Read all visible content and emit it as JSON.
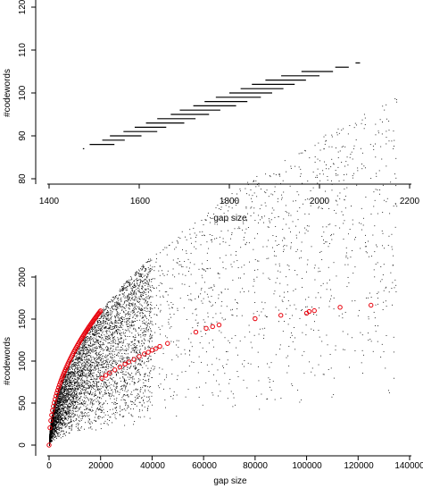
{
  "chart_data": [
    {
      "type": "scatter",
      "title": "",
      "xlabel": "gap size",
      "ylabel": "#codewords",
      "xlim": [
        1380,
        2220
      ],
      "ylim": [
        78,
        122
      ],
      "xticks": [
        "1400",
        "1600",
        "1800",
        "2000",
        "2200"
      ],
      "yticks": [
        "80",
        "90",
        "100",
        "110",
        "120"
      ],
      "grid": false,
      "segments": [
        {
          "y": 87,
          "x0": 1475,
          "x1": 1478
        },
        {
          "y": 88,
          "x0": 1490,
          "x1": 1545
        },
        {
          "y": 89,
          "x0": 1518,
          "x1": 1568
        },
        {
          "y": 90,
          "x0": 1535,
          "x1": 1605
        },
        {
          "y": 91,
          "x0": 1565,
          "x1": 1640
        },
        {
          "y": 92,
          "x0": 1590,
          "x1": 1660
        },
        {
          "y": 93,
          "x0": 1615,
          "x1": 1700
        },
        {
          "y": 94,
          "x0": 1640,
          "x1": 1725
        },
        {
          "y": 95,
          "x0": 1670,
          "x1": 1755
        },
        {
          "y": 96,
          "x0": 1690,
          "x1": 1780
        },
        {
          "y": 97,
          "x0": 1720,
          "x1": 1815
        },
        {
          "y": 98,
          "x0": 1745,
          "x1": 1840
        },
        {
          "y": 99,
          "x0": 1770,
          "x1": 1870
        },
        {
          "y": 100,
          "x0": 1800,
          "x1": 1895
        },
        {
          "y": 101,
          "x0": 1825,
          "x1": 1920
        },
        {
          "y": 102,
          "x0": 1850,
          "x1": 1945
        },
        {
          "y": 103,
          "x0": 1880,
          "x1": 1970
        },
        {
          "y": 104,
          "x0": 1915,
          "x1": 2000
        },
        {
          "y": 105,
          "x0": 1960,
          "x1": 2030
        },
        {
          "y": 106,
          "x0": 2035,
          "x1": 2065
        },
        {
          "y": 107,
          "x0": 2080,
          "x1": 2090
        }
      ]
    },
    {
      "type": "scatter",
      "title": "",
      "xlabel": "gap size",
      "ylabel": "#codewords",
      "xlim": [
        -5000,
        145000
      ],
      "ylim": [
        -50,
        2050
      ],
      "xticks": [
        "0",
        "20000",
        "40000",
        "60000",
        "80000",
        "100000",
        "120000",
        "140000"
      ],
      "yticks": [
        "0",
        "500",
        "1000",
        "1500",
        "2000"
      ],
      "grid": false,
      "envelope": "#codewords ≈ 11.3 × sqrt(gap size)",
      "highlighted_points": [
        {
          "x": 20500,
          "y": 795
        },
        {
          "x": 22000,
          "y": 830
        },
        {
          "x": 23500,
          "y": 860
        },
        {
          "x": 25500,
          "y": 895
        },
        {
          "x": 27500,
          "y": 930
        },
        {
          "x": 29500,
          "y": 965
        },
        {
          "x": 31000,
          "y": 990
        },
        {
          "x": 33000,
          "y": 1020
        },
        {
          "x": 35000,
          "y": 1055
        },
        {
          "x": 37000,
          "y": 1085
        },
        {
          "x": 38500,
          "y": 1105
        },
        {
          "x": 40000,
          "y": 1130
        },
        {
          "x": 41500,
          "y": 1150
        },
        {
          "x": 43000,
          "y": 1175
        },
        {
          "x": 46000,
          "y": 1210
        },
        {
          "x": 57000,
          "y": 1345
        },
        {
          "x": 61000,
          "y": 1390
        },
        {
          "x": 63500,
          "y": 1410
        },
        {
          "x": 66000,
          "y": 1430
        },
        {
          "x": 80000,
          "y": 1505
        },
        {
          "x": 90000,
          "y": 1545
        },
        {
          "x": 100000,
          "y": 1570
        },
        {
          "x": 101000,
          "y": 1590
        },
        {
          "x": 103000,
          "y": 1600
        },
        {
          "x": 113000,
          "y": 1640
        },
        {
          "x": 125000,
          "y": 1665
        }
      ],
      "colors": {
        "points": "#000000",
        "highlight": "#e8000b"
      }
    }
  ]
}
